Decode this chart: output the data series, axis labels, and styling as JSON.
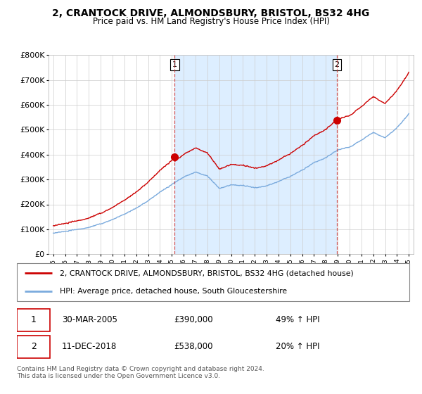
{
  "title": "2, CRANTOCK DRIVE, ALMONDSBURY, BRISTOL, BS32 4HG",
  "subtitle": "Price paid vs. HM Land Registry's House Price Index (HPI)",
  "ylim": [
    0,
    800000
  ],
  "yticks": [
    0,
    100000,
    200000,
    300000,
    400000,
    500000,
    600000,
    700000,
    800000
  ],
  "ytick_labels": [
    "£0",
    "£100K",
    "£200K",
    "£300K",
    "£400K",
    "£500K",
    "£600K",
    "£700K",
    "£800K"
  ],
  "background_color": "#ffffff",
  "plot_bg_color": "#ffffff",
  "grid_color": "#cccccc",
  "shade_color": "#ddeeff",
  "sale1_x": 2005.24,
  "sale1_price": 390000,
  "sale2_x": 2018.94,
  "sale2_price": 538000,
  "legend_line1": "2, CRANTOCK DRIVE, ALMONDSBURY, BRISTOL, BS32 4HG (detached house)",
  "legend_line2": "HPI: Average price, detached house, South Gloucestershire",
  "annotation1_date": "30-MAR-2005",
  "annotation1_price": "£390,000",
  "annotation1_hpi": "49% ↑ HPI",
  "annotation2_date": "11-DEC-2018",
  "annotation2_price": "£538,000",
  "annotation2_hpi": "20% ↑ HPI",
  "footer": "Contains HM Land Registry data © Crown copyright and database right 2024.\nThis data is licensed under the Open Government Licence v3.0.",
  "line_color_red": "#cc0000",
  "line_color_blue": "#7aaadd"
}
